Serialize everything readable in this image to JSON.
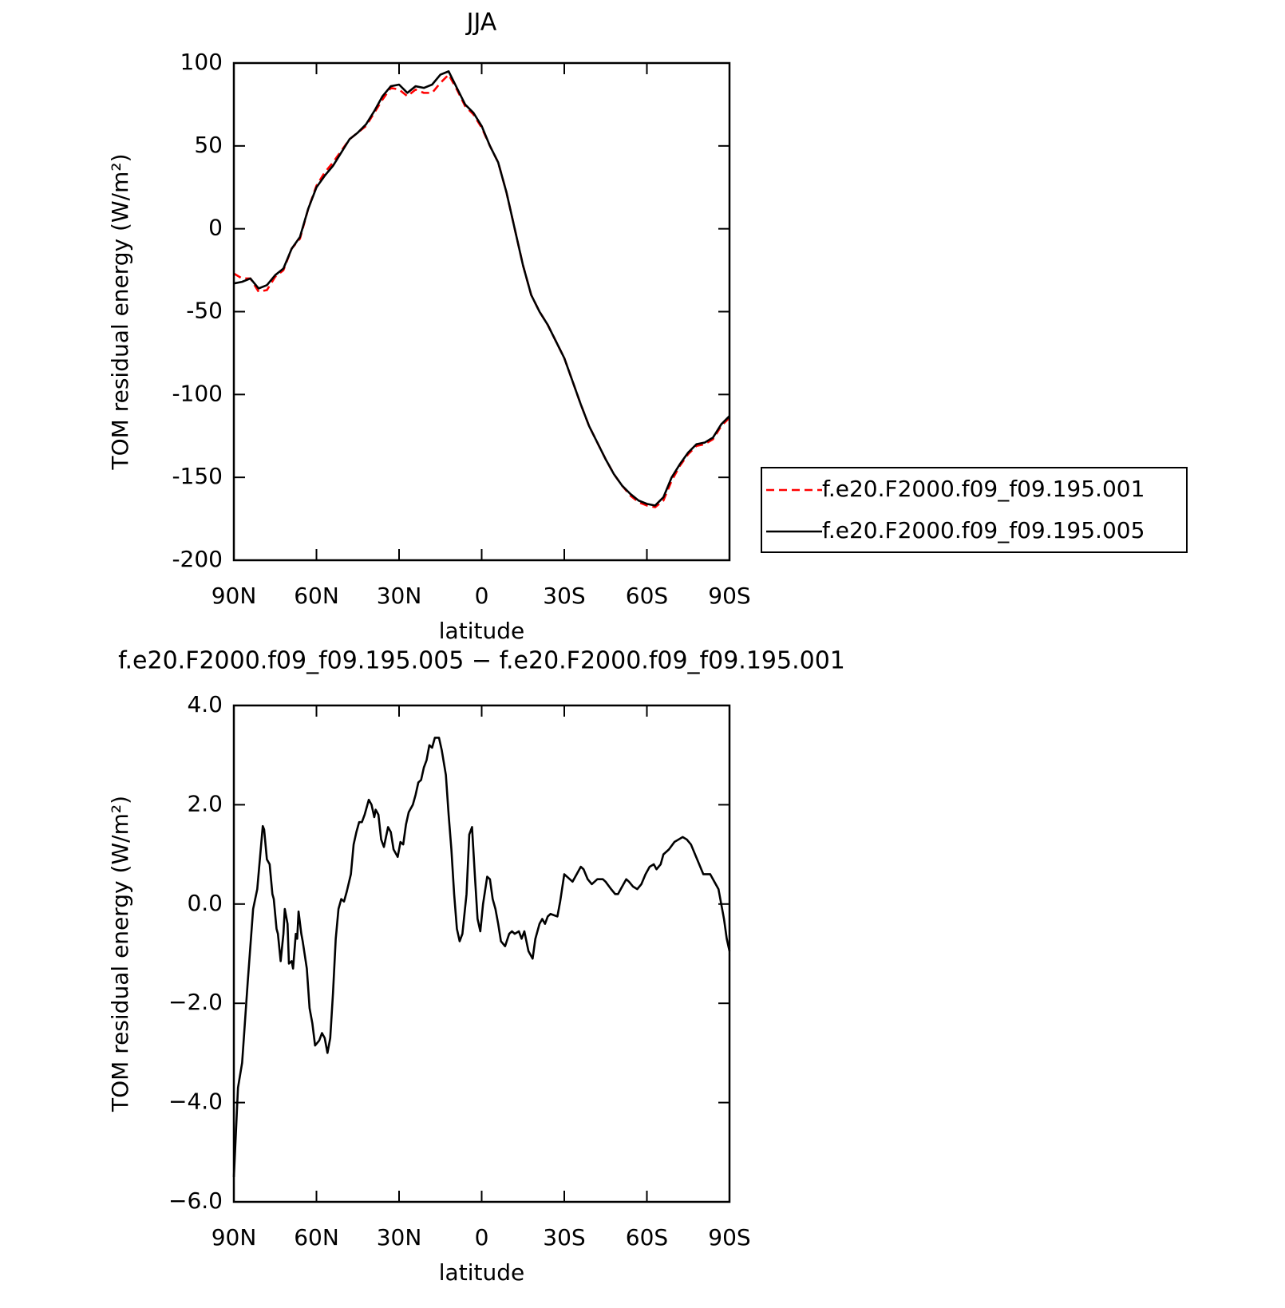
{
  "chart_data": [
    {
      "type": "line",
      "title": "JJA",
      "xlabel": "latitude",
      "ylabel": "TOM residual energy (W/m²)",
      "x": [
        90,
        87,
        84,
        81,
        78,
        75,
        72,
        69,
        66,
        63,
        60,
        57,
        54,
        51,
        48,
        45,
        42,
        39,
        36,
        33,
        30,
        27,
        24,
        21,
        18,
        15,
        12,
        9,
        6,
        3,
        0,
        -3,
        -6,
        -9,
        -12,
        -15,
        -18,
        -21,
        -24,
        -27,
        -30,
        -33,
        -36,
        -39,
        -42,
        -45,
        -48,
        -51,
        -54,
        -57,
        -60,
        -63,
        -66,
        -69,
        -72,
        -75,
        -78,
        -81,
        -84,
        -87,
        -90
      ],
      "series": [
        {
          "name": "f.e20.F2000.f09_f09.195.001",
          "color": "#ff0000",
          "line_style": "dashed",
          "values": [
            -27,
            -30,
            -30,
            -38,
            -37,
            -29,
            -25,
            -12,
            -6,
            12,
            26,
            34,
            40,
            47,
            54,
            58,
            62,
            70,
            78,
            85,
            84,
            80,
            84,
            82,
            82,
            88,
            93,
            84,
            74,
            69,
            61,
            50,
            40,
            22,
            0,
            -22,
            -40,
            -50,
            -58,
            -68,
            -78,
            -92,
            -106,
            -119,
            -129,
            -139,
            -148,
            -155,
            -161,
            -165,
            -167,
            -168,
            -164,
            -152,
            -143,
            -136,
            -131,
            -130,
            -127,
            -119,
            -114
          ]
        },
        {
          "name": "f.e20.F2000.f09_f09.195.005",
          "color": "#000000",
          "line_style": "solid",
          "values": [
            -33,
            -32,
            -30,
            -36,
            -34,
            -28,
            -24,
            -12,
            -5,
            12,
            25,
            32,
            38,
            46,
            54,
            58,
            63,
            71,
            80,
            86,
            87,
            82,
            86,
            85,
            87,
            93,
            95,
            85,
            75,
            70,
            62,
            50,
            40,
            22,
            0,
            -22,
            -40,
            -50,
            -58,
            -68,
            -78,
            -92,
            -106,
            -119,
            -129,
            -139,
            -148,
            -155,
            -160,
            -164,
            -166,
            -167,
            -162,
            -150,
            -142,
            -135,
            -130,
            -129,
            -126,
            -118,
            -113
          ]
        }
      ],
      "xlim": [
        90,
        -90
      ],
      "xticks": [
        {
          "value": 90,
          "label": "90N"
        },
        {
          "value": 60,
          "label": "60N"
        },
        {
          "value": 30,
          "label": "30N"
        },
        0,
        {
          "value": -30,
          "label": "30S"
        },
        {
          "value": -60,
          "label": "60S"
        },
        {
          "value": -90,
          "label": "90S"
        }
      ],
      "ylim": [
        -200,
        100
      ],
      "yticks": [
        -200,
        -150,
        -100,
        -50,
        0,
        50,
        100
      ],
      "legend": "right"
    },
    {
      "type": "line",
      "title": "f.e20.F2000.f09_f09.195.005 − f.e20.F2000.f09_f09.195.001",
      "xlabel": "latitude",
      "ylabel": "TOM residual energy (W/m²)",
      "x": [
        90,
        88.5,
        87,
        85,
        83,
        81.5,
        79.5,
        79,
        78,
        77,
        76,
        75.5,
        74.5,
        74,
        73,
        72,
        71.5,
        70.5,
        70,
        69,
        68.5,
        67.5,
        67,
        66.5,
        65.5,
        65,
        63.5,
        62.5,
        61.5,
        60.5,
        59,
        58,
        57,
        56,
        55,
        54,
        53,
        52,
        51,
        50,
        49,
        47.5,
        46.5,
        45.5,
        44.5,
        43.5,
        42.5,
        41,
        40,
        39,
        38.5,
        37.5,
        36.5,
        35.5,
        34,
        33,
        32,
        30.5,
        29.5,
        28.5,
        27.5,
        26.5,
        25,
        24,
        23,
        22,
        21,
        20,
        19,
        18,
        17,
        15.5,
        14.5,
        13,
        12,
        11,
        10,
        9,
        8,
        7,
        5.5,
        4.5,
        3.5,
        2.5,
        1.5,
        0.5,
        -0.5,
        -2,
        -3,
        -4,
        -5,
        -6,
        -7,
        -8.5,
        -10,
        -11,
        -12,
        -13.5,
        -14.5,
        -15.5,
        -17,
        -18.5,
        -19.5,
        -21,
        -22,
        -23,
        -24,
        -25,
        -27.5,
        -28.5,
        -30,
        -31,
        -32,
        -33,
        -34.5,
        -36,
        -37,
        -38.5,
        -40,
        -41,
        -42,
        -44,
        -45,
        -47,
        -48.5,
        -49.5,
        -51,
        -52.5,
        -53.5,
        -55,
        -56.5,
        -58,
        -59.5,
        -61,
        -62.5,
        -63.5,
        -65,
        -66,
        -68,
        -70,
        -71.5,
        -73,
        -74.5,
        -76,
        -77.5,
        -79,
        -80.5,
        -82,
        -83,
        -84.5,
        -86,
        -87,
        -88,
        -89,
        -90
      ],
      "values": [
        -5.5,
        -3.7,
        -3.2,
        -1.6,
        -0.1,
        0.3,
        1.57,
        1.5,
        0.9,
        0.8,
        0.2,
        0.1,
        -0.5,
        -0.6,
        -1.15,
        -0.6,
        -0.1,
        -0.4,
        -1.2,
        -1.15,
        -1.3,
        -0.6,
        -0.7,
        -0.15,
        -0.6,
        -0.75,
        -1.3,
        -2.1,
        -2.4,
        -2.85,
        -2.75,
        -2.6,
        -2.7,
        -3.0,
        -2.7,
        -1.8,
        -0.7,
        -0.1,
        0.1,
        0.05,
        0.25,
        0.6,
        1.2,
        1.45,
        1.65,
        1.65,
        1.8,
        2.1,
        2.0,
        1.75,
        1.9,
        1.8,
        1.3,
        1.15,
        1.55,
        1.45,
        1.1,
        0.95,
        1.25,
        1.2,
        1.6,
        1.85,
        2.0,
        2.2,
        2.45,
        2.5,
        2.75,
        2.9,
        3.2,
        3.15,
        3.35,
        3.35,
        3.1,
        2.6,
        1.8,
        1.1,
        0.2,
        -0.5,
        -0.75,
        -0.6,
        0.2,
        1.4,
        1.55,
        0.6,
        -0.3,
        -0.55,
        0.0,
        0.55,
        0.5,
        0.1,
        -0.1,
        -0.4,
        -0.75,
        -0.85,
        -0.6,
        -0.55,
        -0.6,
        -0.55,
        -0.7,
        -0.55,
        -0.95,
        -1.1,
        -0.7,
        -0.4,
        -0.3,
        -0.4,
        -0.25,
        -0.2,
        -0.25,
        0.05,
        0.6,
        0.55,
        0.5,
        0.45,
        0.6,
        0.75,
        0.7,
        0.5,
        0.4,
        0.45,
        0.5,
        0.5,
        0.45,
        0.3,
        0.2,
        0.2,
        0.35,
        0.5,
        0.45,
        0.35,
        0.3,
        0.4,
        0.6,
        0.75,
        0.8,
        0.7,
        0.8,
        1.0,
        1.1,
        1.25,
        1.3,
        1.35,
        1.3,
        1.2,
        1.0,
        0.8,
        0.6,
        0.6,
        0.6,
        0.45,
        0.3,
        0.0,
        -0.3,
        -0.7,
        -0.95
      ],
      "color": "#000000",
      "xlim": [
        90,
        -90
      ],
      "xticks": [
        {
          "value": 90,
          "label": "90N"
        },
        {
          "value": 60,
          "label": "60N"
        },
        {
          "value": 30,
          "label": "30N"
        },
        0,
        {
          "value": -30,
          "label": "30S"
        },
        {
          "value": -60,
          "label": "60S"
        },
        {
          "value": -90,
          "label": "90S"
        }
      ],
      "ylim": [
        -6,
        4
      ],
      "yticks": [
        {
          "value": -6,
          "label": "−6.0"
        },
        {
          "value": -4,
          "label": "−4.0"
        },
        {
          "value": -2,
          "label": "−2.0"
        },
        {
          "value": 0,
          "label": "0.0"
        },
        {
          "value": 2,
          "label": "2.0"
        },
        {
          "value": 4,
          "label": "4.0"
        }
      ]
    }
  ]
}
